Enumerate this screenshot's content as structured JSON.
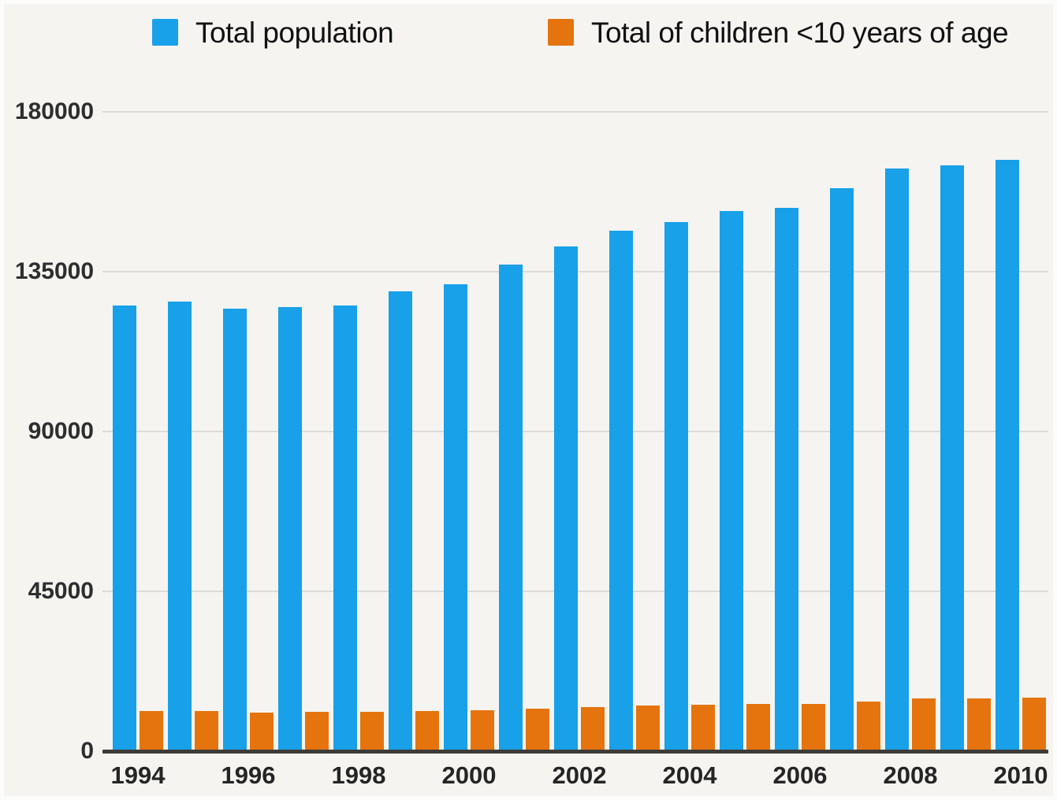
{
  "chart_data": {
    "type": "bar",
    "title": "",
    "categories": [
      "1994",
      "1995",
      "1996",
      "1997",
      "1998",
      "1999",
      "2000",
      "2001",
      "2002",
      "2003",
      "2004",
      "2005",
      "2006",
      "2007",
      "2008",
      "2009",
      "2010"
    ],
    "series": [
      {
        "name": "Total population",
        "color": "#18a0e8",
        "values": [
          125500,
          126500,
          124500,
          125000,
          125500,
          129500,
          131500,
          137000,
          142000,
          146500,
          149000,
          152000,
          153000,
          158500,
          164000,
          165000,
          166500
        ]
      },
      {
        "name": "Total of children <10 years of age",
        "color": "#e5740e",
        "values": [
          11200,
          11300,
          10800,
          11000,
          11000,
          11300,
          11500,
          12000,
          12500,
          12900,
          13000,
          13400,
          13400,
          14000,
          14800,
          14800,
          15000
        ]
      }
    ],
    "ylim": [
      0,
      180000
    ],
    "yticks": [
      0,
      45000,
      90000,
      135000,
      180000
    ],
    "ytick_labels": [
      "0",
      "45000",
      "90000",
      "135000",
      "180000"
    ],
    "xtick_labels": [
      "1994",
      "1996",
      "1998",
      "2000",
      "2002",
      "2004",
      "2006",
      "2008",
      "2010"
    ],
    "xtick_step": 2,
    "grid": "horizontal",
    "legend_position": "top",
    "colors": {
      "background": "#f5f4f1",
      "gridline": "#dbdbd9",
      "axis_line": "#3d3c38",
      "tick_text": "#2e2e2e",
      "legend_text": "#111111"
    }
  }
}
